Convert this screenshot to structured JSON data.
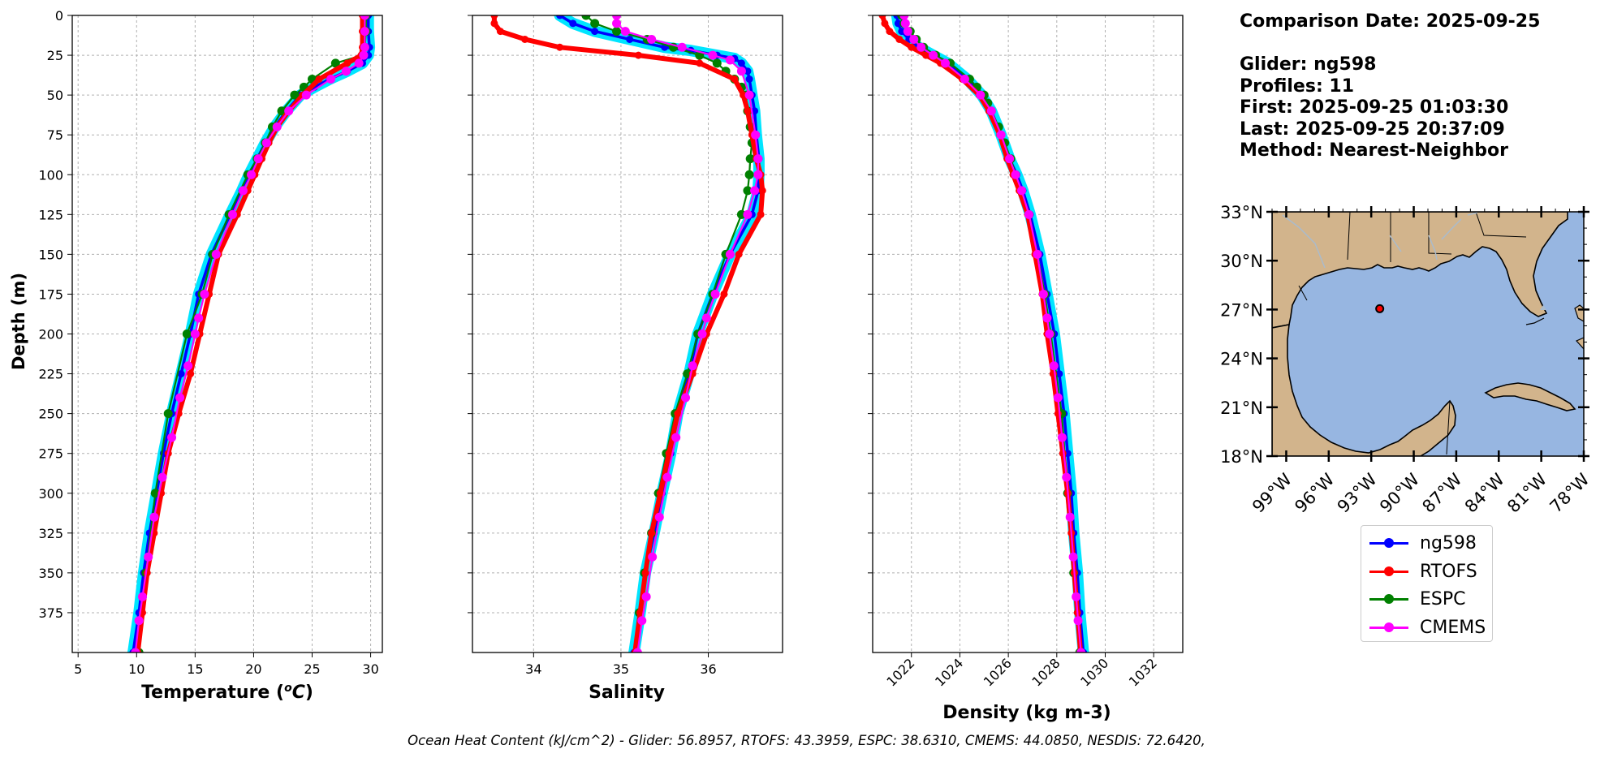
{
  "info": {
    "comparison_date": "Comparison Date: 2025-09-25",
    "glider": "Glider: ng598",
    "profiles": "Profiles: 11",
    "first": "First: 2025-09-25 01:03:30",
    "last": "Last: 2025-09-25 20:37:09",
    "method": "Method: Nearest-Neighbor"
  },
  "footer": "Ocean Heat Content (kJ/cm^2) - Glider: 56.8957,  RTOFS: 43.3959,  ESPC: 38.6310,  CMEMS: 44.0850,  NESDIS: 72.6420,",
  "legend": [
    {
      "label": "ng598",
      "color": "#0000ff"
    },
    {
      "label": "RTOFS",
      "color": "#ff0000"
    },
    {
      "label": "ESPC",
      "color": "#008000"
    },
    {
      "label": "CMEMS",
      "color": "#ff00ff"
    }
  ],
  "chart_data": [
    {
      "type": "line",
      "xlabel": "Temperature (°C)",
      "ylabel": "Depth (m)",
      "xlim": [
        4.5,
        31
      ],
      "ylim": [
        400,
        0
      ],
      "xticks": [
        5,
        10,
        15,
        20,
        25,
        30
      ],
      "yticks": [
        0,
        25,
        50,
        75,
        100,
        125,
        150,
        175,
        200,
        225,
        250,
        275,
        300,
        325,
        350,
        375
      ],
      "grid": true,
      "series": [
        {
          "name": "ng598",
          "color": "#0000ff",
          "band_color": "#00e5ff",
          "depth": [
            0,
            10,
            20,
            25,
            30,
            35,
            40,
            45,
            50,
            60,
            70,
            80,
            90,
            100,
            110,
            125,
            150,
            175,
            200,
            225,
            250,
            275,
            300,
            325,
            350,
            375,
            400
          ],
          "values": [
            29.8,
            29.8,
            29.9,
            29.8,
            29.3,
            28.0,
            26.5,
            25.2,
            24.0,
            22.8,
            21.8,
            21.0,
            20.3,
            19.6,
            19.0,
            18.0,
            16.4,
            15.3,
            14.6,
            13.8,
            13.0,
            12.3,
            11.7,
            11.1,
            10.6,
            10.2,
            9.7
          ]
        },
        {
          "name": "RTOFS",
          "color": "#ff0000",
          "depth": [
            0,
            10,
            20,
            25,
            30,
            40,
            50,
            60,
            70,
            80,
            90,
            100,
            110,
            125,
            150,
            175,
            200,
            225,
            250,
            275,
            300,
            325,
            350,
            375,
            400
          ],
          "values": [
            29.3,
            29.3,
            29.3,
            29.2,
            28.0,
            25.6,
            24.2,
            23.0,
            22.0,
            21.3,
            20.7,
            20.1,
            19.5,
            18.6,
            17.0,
            16.2,
            15.4,
            14.6,
            13.6,
            12.7,
            12.1,
            11.5,
            10.9,
            10.5,
            10.1
          ]
        },
        {
          "name": "ESPC",
          "color": "#008000",
          "depth": [
            0,
            10,
            20,
            25,
            30,
            40,
            45,
            50,
            60,
            70,
            80,
            90,
            100,
            125,
            150,
            175,
            200,
            250,
            300,
            350,
            400
          ],
          "values": [
            29.6,
            29.6,
            29.5,
            29.3,
            27.0,
            25.0,
            24.3,
            23.5,
            22.4,
            21.6,
            21.0,
            20.3,
            19.5,
            17.9,
            16.5,
            15.6,
            14.3,
            12.7,
            11.6,
            10.8,
            10.2
          ]
        },
        {
          "name": "CMEMS",
          "color": "#ff00ff",
          "depth": [
            0,
            10,
            20,
            25,
            30,
            35,
            40,
            50,
            60,
            70,
            80,
            90,
            100,
            110,
            125,
            150,
            175,
            190,
            200,
            220,
            240,
            265,
            290,
            315,
            340,
            365,
            380,
            400
          ],
          "values": [
            29.5,
            29.5,
            29.5,
            29.4,
            29.0,
            27.9,
            26.6,
            24.5,
            23.0,
            22.0,
            21.1,
            20.4,
            19.8,
            19.1,
            18.2,
            16.8,
            15.8,
            15.3,
            15.0,
            14.4,
            13.7,
            13.0,
            12.2,
            11.5,
            11.0,
            10.5,
            10.2,
            9.9
          ]
        }
      ]
    },
    {
      "type": "line",
      "xlabel": "Salinity",
      "xlim": [
        33.3,
        36.85
      ],
      "ylim": [
        400,
        0
      ],
      "xticks": [
        34,
        35,
        36
      ],
      "yticks": [
        0,
        25,
        50,
        75,
        100,
        125,
        150,
        175,
        200,
        225,
        250,
        275,
        300,
        325,
        350,
        375
      ],
      "grid": true,
      "series": [
        {
          "name": "ng598",
          "color": "#0000ff",
          "band_color": "#00e5ff",
          "depth": [
            0,
            5,
            10,
            15,
            20,
            22,
            25,
            27,
            30,
            35,
            40,
            50,
            60,
            75,
            90,
            100,
            110,
            125,
            150,
            175,
            200,
            225,
            250,
            275,
            300,
            325,
            350,
            375,
            400
          ],
          "values": [
            34.3,
            34.45,
            34.7,
            35.1,
            35.5,
            35.8,
            36.1,
            36.3,
            36.38,
            36.45,
            36.47,
            36.5,
            36.53,
            36.55,
            36.58,
            36.58,
            36.57,
            36.5,
            36.25,
            36.05,
            35.88,
            35.78,
            35.65,
            35.57,
            35.47,
            35.38,
            35.28,
            35.22,
            35.15
          ]
        },
        {
          "name": "RTOFS",
          "color": "#ff0000",
          "depth": [
            0,
            5,
            10,
            15,
            20,
            25,
            30,
            40,
            50,
            60,
            75,
            90,
            100,
            110,
            125,
            150,
            175,
            200,
            225,
            250,
            275,
            300,
            325,
            350,
            375,
            400
          ],
          "values": [
            33.55,
            33.55,
            33.62,
            33.9,
            34.3,
            35.2,
            35.9,
            36.3,
            36.4,
            36.45,
            36.5,
            36.55,
            36.6,
            36.62,
            36.6,
            36.35,
            36.18,
            35.98,
            35.82,
            35.65,
            35.55,
            35.45,
            35.35,
            35.28,
            35.22,
            35.16
          ]
        },
        {
          "name": "ESPC",
          "color": "#008000",
          "depth": [
            0,
            5,
            10,
            15,
            20,
            25,
            30,
            35,
            40,
            45,
            50,
            60,
            70,
            80,
            90,
            100,
            110,
            125,
            150,
            175,
            200,
            225,
            250,
            275,
            300,
            325,
            350,
            375,
            400
          ],
          "values": [
            34.6,
            34.7,
            34.95,
            35.3,
            35.6,
            35.9,
            36.1,
            36.2,
            36.3,
            36.38,
            36.43,
            36.45,
            36.48,
            36.5,
            36.48,
            36.47,
            36.45,
            36.38,
            36.2,
            36.05,
            35.88,
            35.76,
            35.62,
            35.52,
            35.43,
            35.35,
            35.27,
            35.21,
            35.18
          ]
        },
        {
          "name": "CMEMS",
          "color": "#ff00ff",
          "depth": [
            0,
            5,
            10,
            15,
            20,
            25,
            28,
            35,
            50,
            75,
            90,
            100,
            110,
            125,
            150,
            175,
            190,
            200,
            220,
            240,
            265,
            290,
            315,
            340,
            365,
            380,
            400
          ],
          "values": [
            34.95,
            34.95,
            35.05,
            35.35,
            35.7,
            36.05,
            36.25,
            36.38,
            36.47,
            36.54,
            36.57,
            36.57,
            36.53,
            36.45,
            36.25,
            36.08,
            35.98,
            35.93,
            35.82,
            35.74,
            35.63,
            35.53,
            35.44,
            35.36,
            35.29,
            35.24,
            35.19
          ]
        }
      ]
    },
    {
      "type": "line",
      "xlabel": "Density (kg m-3)",
      "xlim": [
        1020.4,
        1033.2
      ],
      "ylim": [
        400,
        0
      ],
      "xticks": [
        1022,
        1024,
        1026,
        1028,
        1030,
        1032
      ],
      "yticks": [
        0,
        25,
        50,
        75,
        100,
        125,
        150,
        175,
        200,
        225,
        250,
        275,
        300,
        325,
        350,
        375
      ],
      "grid": true,
      "series": [
        {
          "name": "ng598",
          "color": "#0000ff",
          "band_color": "#00e5ff",
          "depth": [
            0,
            5,
            10,
            15,
            20,
            25,
            30,
            40,
            50,
            60,
            75,
            90,
            100,
            110,
            125,
            150,
            175,
            200,
            225,
            250,
            275,
            300,
            325,
            350,
            375,
            400
          ],
          "values": [
            1021.4,
            1021.45,
            1021.6,
            1021.9,
            1022.3,
            1022.9,
            1023.5,
            1024.3,
            1024.9,
            1025.3,
            1025.7,
            1026.05,
            1026.35,
            1026.6,
            1026.9,
            1027.3,
            1027.6,
            1027.9,
            1028.1,
            1028.3,
            1028.45,
            1028.6,
            1028.7,
            1028.85,
            1028.95,
            1029.1
          ]
        },
        {
          "name": "RTOFS",
          "color": "#ff0000",
          "depth": [
            0,
            5,
            10,
            15,
            20,
            25,
            30,
            40,
            50,
            60,
            75,
            90,
            100,
            110,
            125,
            150,
            175,
            200,
            225,
            250,
            275,
            300,
            325,
            350,
            375,
            400
          ],
          "values": [
            1020.8,
            1020.9,
            1021.1,
            1021.5,
            1022.0,
            1022.6,
            1023.2,
            1024.1,
            1024.8,
            1025.2,
            1025.65,
            1025.95,
            1026.2,
            1026.45,
            1026.8,
            1027.1,
            1027.4,
            1027.6,
            1027.85,
            1028.05,
            1028.25,
            1028.45,
            1028.6,
            1028.72,
            1028.85,
            1028.98
          ]
        },
        {
          "name": "ESPC",
          "color": "#008000",
          "depth": [
            0,
            5,
            10,
            15,
            20,
            25,
            30,
            40,
            45,
            50,
            55,
            60,
            70,
            80,
            90,
            100,
            125,
            150,
            175,
            200,
            250,
            300,
            350,
            400
          ],
          "values": [
            1021.6,
            1021.7,
            1021.95,
            1022.2,
            1022.5,
            1023.0,
            1023.6,
            1024.4,
            1024.7,
            1025.0,
            1025.15,
            1025.3,
            1025.6,
            1025.85,
            1026.1,
            1026.3,
            1026.85,
            1027.2,
            1027.5,
            1027.75,
            1028.2,
            1028.45,
            1028.7,
            1028.95
          ]
        },
        {
          "name": "CMEMS",
          "color": "#ff00ff",
          "depth": [
            0,
            5,
            10,
            15,
            20,
            25,
            30,
            40,
            50,
            60,
            75,
            90,
            100,
            110,
            125,
            150,
            175,
            190,
            200,
            220,
            240,
            265,
            290,
            315,
            340,
            365,
            380,
            400
          ],
          "values": [
            1021.7,
            1021.75,
            1021.85,
            1022.1,
            1022.4,
            1022.9,
            1023.4,
            1024.2,
            1024.85,
            1025.3,
            1025.7,
            1026.05,
            1026.3,
            1026.55,
            1026.85,
            1027.2,
            1027.45,
            1027.6,
            1027.7,
            1027.88,
            1028.05,
            1028.22,
            1028.4,
            1028.55,
            1028.68,
            1028.8,
            1028.88,
            1029.0
          ]
        }
      ]
    },
    {
      "type": "map",
      "lon_range": [
        -100,
        -78
      ],
      "lat_range": [
        18,
        33
      ],
      "xticks": [
        "99°W",
        "96°W",
        "93°W",
        "90°W",
        "87°W",
        "84°W",
        "81°W",
        "78°W"
      ],
      "yticks": [
        "33°N",
        "30°N",
        "27°N",
        "24°N",
        "21°N",
        "18°N"
      ],
      "points": [
        {
          "name": "glider",
          "lon": -92.4,
          "lat": 27.05,
          "color": "#000000"
        },
        {
          "name": "model",
          "lon": -92.4,
          "lat": 27.05,
          "color": "#ff0000"
        }
      ]
    }
  ]
}
